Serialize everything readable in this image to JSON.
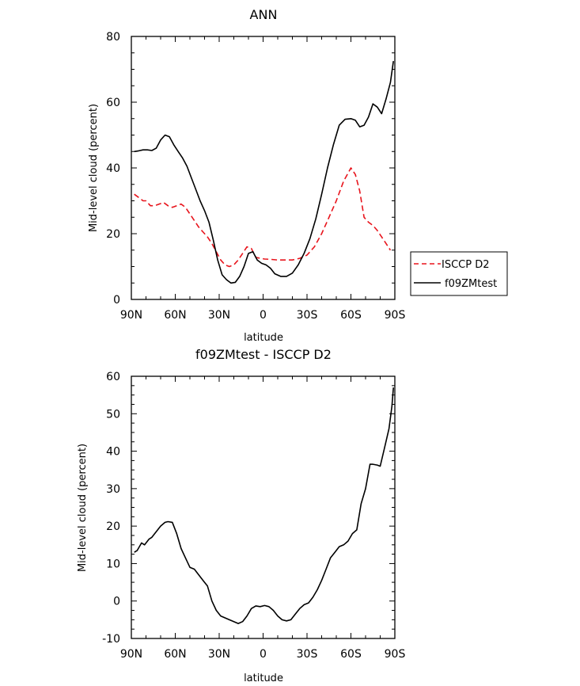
{
  "chart_data": [
    {
      "type": "line",
      "title": "ANN",
      "xlabel": "latitude",
      "ylabel": "Mid-level cloud (percent)",
      "xlim": [
        90,
        -90
      ],
      "ylim": [
        0,
        80
      ],
      "xticks": [
        {
          "value": 90,
          "label": "90N"
        },
        {
          "value": 60,
          "label": "60N"
        },
        {
          "value": 30,
          "label": "30N"
        },
        {
          "value": 0,
          "label": "0"
        },
        {
          "value": -30,
          "label": "30S"
        },
        {
          "value": -60,
          "label": "60S"
        },
        {
          "value": -90,
          "label": "90S"
        }
      ],
      "yticks": [
        0,
        20,
        40,
        60,
        80
      ],
      "legend": "right",
      "series": [
        {
          "name": "ISCCP D2",
          "color": "#e8141c",
          "dash": "dashed",
          "x": [
            88,
            85,
            82,
            80,
            77,
            74,
            71,
            68,
            65,
            62,
            59,
            56,
            53,
            50,
            47,
            44,
            41,
            38,
            35,
            32,
            29,
            26,
            23,
            20,
            17,
            14,
            11,
            8,
            5,
            2,
            -1,
            -5,
            -10,
            -15,
            -20,
            -25,
            -30,
            -35,
            -40,
            -45,
            -50,
            -55,
            -60,
            -63,
            -66,
            -69,
            -72,
            -75,
            -78,
            -81,
            -84,
            -87
          ],
          "y": [
            32,
            31,
            30,
            30,
            28.5,
            28.5,
            29,
            29.5,
            28.5,
            28,
            28.5,
            29,
            28,
            26,
            24,
            22,
            20.5,
            19,
            17,
            14.5,
            12,
            10.5,
            10,
            10.5,
            12,
            14,
            16,
            15.5,
            12.8,
            12.5,
            12.3,
            12.2,
            12,
            12,
            12,
            12.5,
            13.5,
            16,
            20,
            25,
            30,
            36,
            40,
            38,
            33,
            25,
            23.5,
            22.5,
            21,
            19,
            17,
            15
          ]
        },
        {
          "name": "f09ZMtest",
          "color": "#000000",
          "dash": "solid",
          "x": [
            88,
            85,
            82,
            79,
            76,
            73,
            70,
            67,
            64,
            61,
            58,
            55,
            52,
            49,
            46,
            43,
            40,
            37,
            34,
            31,
            28,
            25,
            22,
            19,
            16,
            13,
            10,
            7,
            4,
            1,
            -2,
            -5,
            -8,
            -12,
            -16,
            -20,
            -24,
            -28,
            -32,
            -36,
            -40,
            -44,
            -48,
            -52,
            -56,
            -60,
            -63,
            -66,
            -69,
            -72,
            -75,
            -78,
            -81,
            -84,
            -87,
            -89
          ],
          "y": [
            45,
            45.2,
            45.5,
            45.5,
            45.3,
            46,
            48.5,
            50,
            49.5,
            47,
            45,
            43,
            40.5,
            37,
            33.5,
            30,
            27,
            23.5,
            18,
            12,
            7.5,
            6,
            5,
            5.2,
            7,
            10,
            14,
            14.5,
            12,
            11,
            10.5,
            9.5,
            7.8,
            7,
            7,
            8,
            10.5,
            14,
            18.5,
            24.5,
            32,
            40,
            47,
            53,
            54.8,
            55,
            54.5,
            52.5,
            53,
            55.5,
            59.5,
            58.5,
            56.5,
            61,
            66,
            72.5
          ]
        }
      ]
    },
    {
      "type": "line",
      "title": "f09ZMtest - ISCCP D2",
      "xlabel": "latitude",
      "ylabel": "Mid-level cloud (percent)",
      "xlim": [
        90,
        -90
      ],
      "ylim": [
        -10,
        60
      ],
      "xticks": [
        {
          "value": 90,
          "label": "90N"
        },
        {
          "value": 60,
          "label": "60N"
        },
        {
          "value": 30,
          "label": "30N"
        },
        {
          "value": 0,
          "label": "0"
        },
        {
          "value": -30,
          "label": "30S"
        },
        {
          "value": -60,
          "label": "60S"
        },
        {
          "value": -90,
          "label": "90S"
        }
      ],
      "yticks": [
        -10,
        0,
        10,
        20,
        30,
        40,
        50,
        60
      ],
      "series": [
        {
          "color": "#000000",
          "dash": "solid",
          "x": [
            88,
            86,
            83,
            81,
            78,
            76,
            73,
            70,
            67,
            65,
            62,
            59,
            56,
            53,
            50,
            47,
            44,
            41,
            38,
            35,
            32,
            29,
            26,
            23,
            20,
            17,
            14,
            11,
            8,
            5,
            2,
            -1,
            -4,
            -7,
            -10,
            -13,
            -16,
            -19,
            -22,
            -25,
            -28,
            -31,
            -34,
            -37,
            -40,
            -43,
            -46,
            -49,
            -52,
            -55,
            -58,
            -61,
            -64,
            -67,
            -70,
            -73,
            -75,
            -78,
            -80,
            -83,
            -86,
            -88,
            -89
          ],
          "y": [
            13,
            13.5,
            15.5,
            15,
            16.5,
            17,
            18.5,
            20,
            21,
            21.2,
            21,
            18,
            14,
            11.5,
            9,
            8.5,
            7,
            5.5,
            4,
            0,
            -2.5,
            -4,
            -4.5,
            -5,
            -5.5,
            -6,
            -5.5,
            -4,
            -2,
            -1.3,
            -1.5,
            -1.2,
            -1.5,
            -2.5,
            -4,
            -5,
            -5.3,
            -5,
            -3.5,
            -2,
            -1,
            -0.5,
            1,
            3,
            5.5,
            8.5,
            11.5,
            13,
            14.5,
            15,
            16,
            18,
            19,
            26,
            30,
            36.5,
            36.5,
            36.3,
            36,
            41,
            46,
            52,
            57
          ]
        }
      ]
    }
  ],
  "legend_entries": [
    {
      "label": "ISCCP D2",
      "color": "#e8141c",
      "dash": "dashed"
    },
    {
      "label": "f09ZMtest",
      "color": "#000000",
      "dash": "solid"
    }
  ]
}
